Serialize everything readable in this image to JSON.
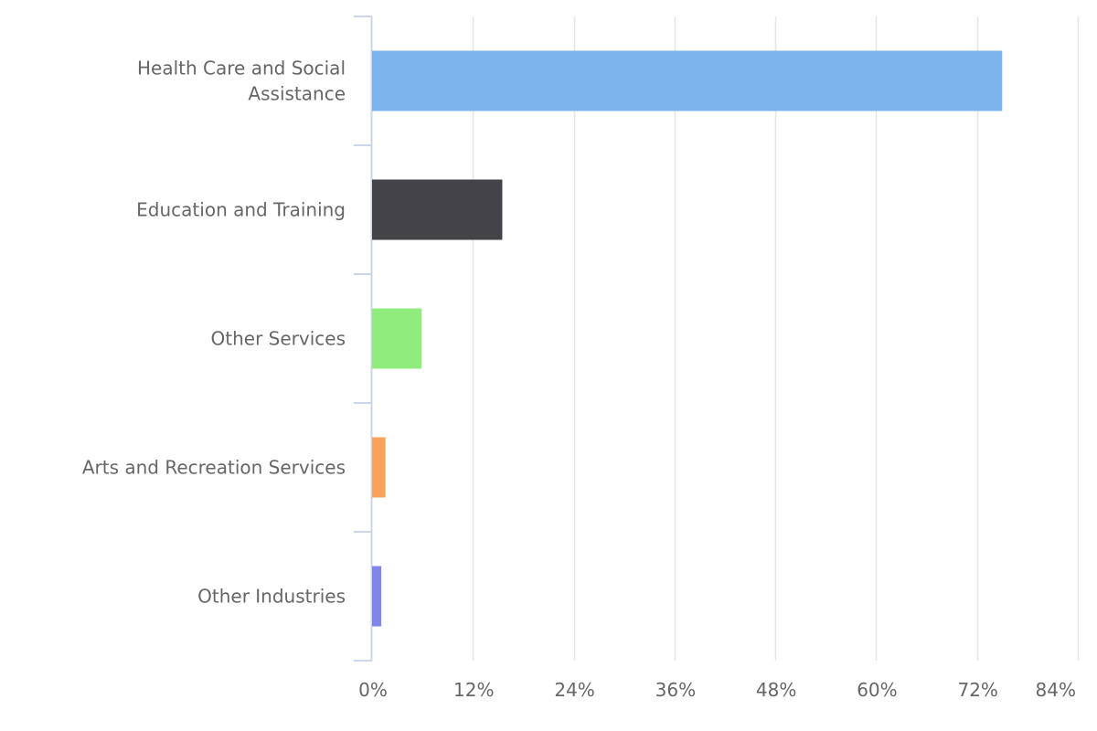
{
  "chart_data": {
    "type": "bar",
    "orientation": "horizontal",
    "categories": [
      [
        "Health Care and Social",
        "Assistance"
      ],
      [
        "Education and Training"
      ],
      [
        "Other Services"
      ],
      [
        "Arts and Recreation Services"
      ],
      [
        "Other Industries"
      ]
    ],
    "values": [
      75.0,
      15.5,
      5.9,
      1.6,
      1.1
    ],
    "colors": [
      "#7cb5ec",
      "#434348",
      "#90ed7d",
      "#f7a35c",
      "#8085e9"
    ],
    "xlim": [
      0,
      84
    ],
    "ticks": [
      0,
      12,
      24,
      36,
      48,
      60,
      72,
      84
    ],
    "tick_labels": [
      "0%",
      "12%",
      "24%",
      "36%",
      "48%",
      "60%",
      "72%",
      "84%"
    ],
    "grid": true,
    "title": "",
    "xlabel": "",
    "ylabel": ""
  }
}
